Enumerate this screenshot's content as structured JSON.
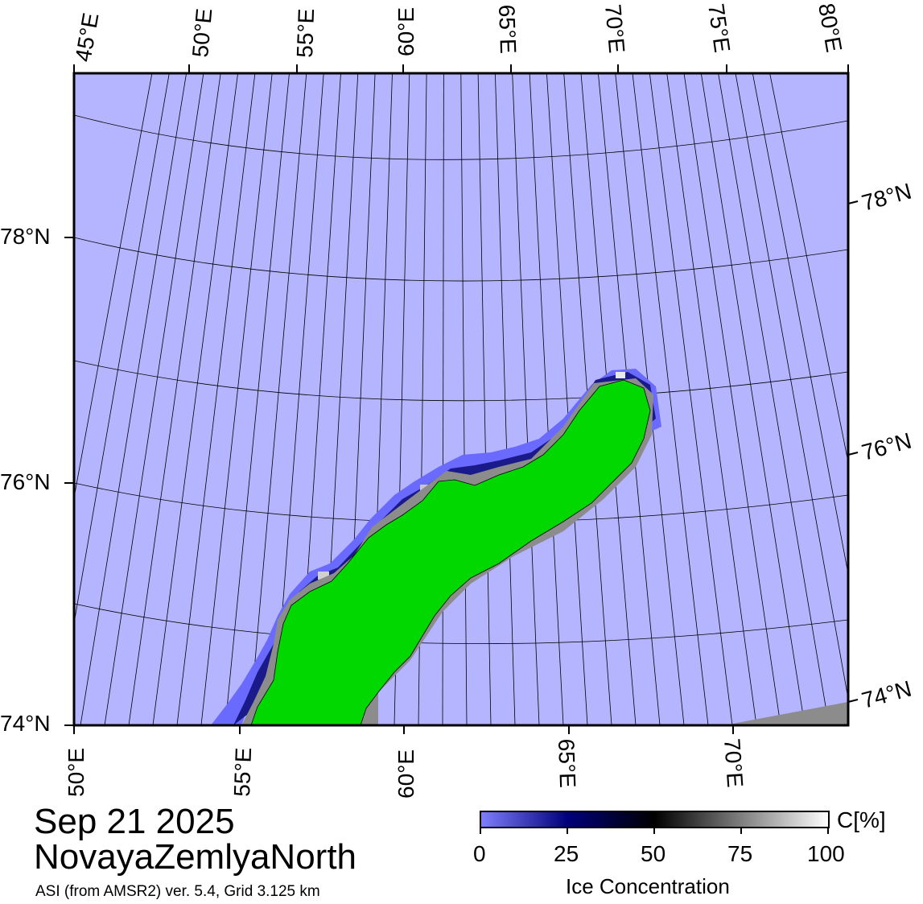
{
  "map": {
    "date": "Sep 21 2025",
    "region": "NovayaZemlyaNorth",
    "source": "ASI (from AMSR2) ver. 5.4,  Grid 3.125 km",
    "colors": {
      "ocean": "#b4b4ff",
      "land": "#00d800",
      "coast_unknown": "#8c8c8c",
      "frame": "#000000"
    },
    "top_ticks": [
      "45°E",
      "50°E",
      "55°E",
      "60°E",
      "65°E",
      "70°E",
      "75°E",
      "80°E"
    ],
    "bottom_ticks": [
      "50°E",
      "55°E",
      "60°E",
      "65°E",
      "70°E"
    ],
    "left_ticks": [
      "78°N",
      "76°N",
      "74°N"
    ],
    "right_ticks": [
      "78°N",
      "76°N",
      "74°N"
    ]
  },
  "colorbar": {
    "title": "Ice Concentration",
    "unit": "C[%]",
    "ticks": [
      "0",
      "25",
      "50",
      "75",
      "100"
    ],
    "stops": [
      "#7070ff",
      "#000060",
      "#000000",
      "#ffffff"
    ]
  }
}
